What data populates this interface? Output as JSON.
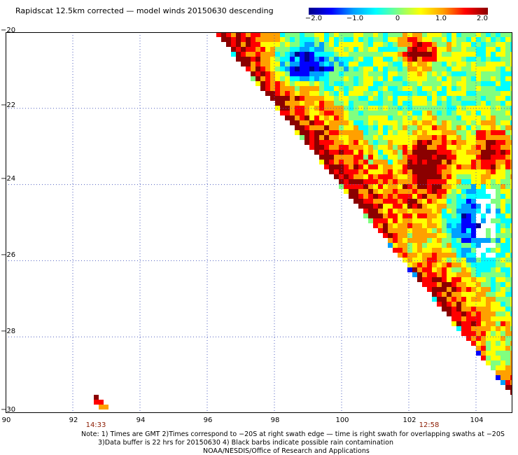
{
  "title": "Rapidscat 12.5km corrected — model winds 20150630 descending",
  "colorbar": {
    "ticks": [
      "−2.0",
      "−1.0",
      "0",
      "1.0",
      "2.0"
    ],
    "colors": [
      "#00008b",
      "#0000ff",
      "#00a0ff",
      "#00ffff",
      "#80ff80",
      "#ffff00",
      "#ffa000",
      "#ff0000",
      "#8b0000"
    ]
  },
  "axes": {
    "x_ticks": [
      "90",
      "92",
      "94",
      "96",
      "98",
      "100",
      "102",
      "104"
    ],
    "y_ticks": [
      "−20",
      "−22",
      "−24",
      "−26",
      "−28",
      "−30"
    ],
    "grid": "dotted"
  },
  "time_labels": [
    {
      "text": "14:33",
      "lon": 92.7
    },
    {
      "text": "12:58",
      "lon": 102.5
    }
  ],
  "notes": [
    "Note:  1) Times are GMT  2)Times correspond to −20S at right swath edge — time is right swath for overlapping swaths at −20S",
    "3)Data buffer is 22 hrs for 20150630  4) Black barbs indicate possible rain contamination",
    "NOAA/NESDIS/Office of Research and Applications"
  ]
}
